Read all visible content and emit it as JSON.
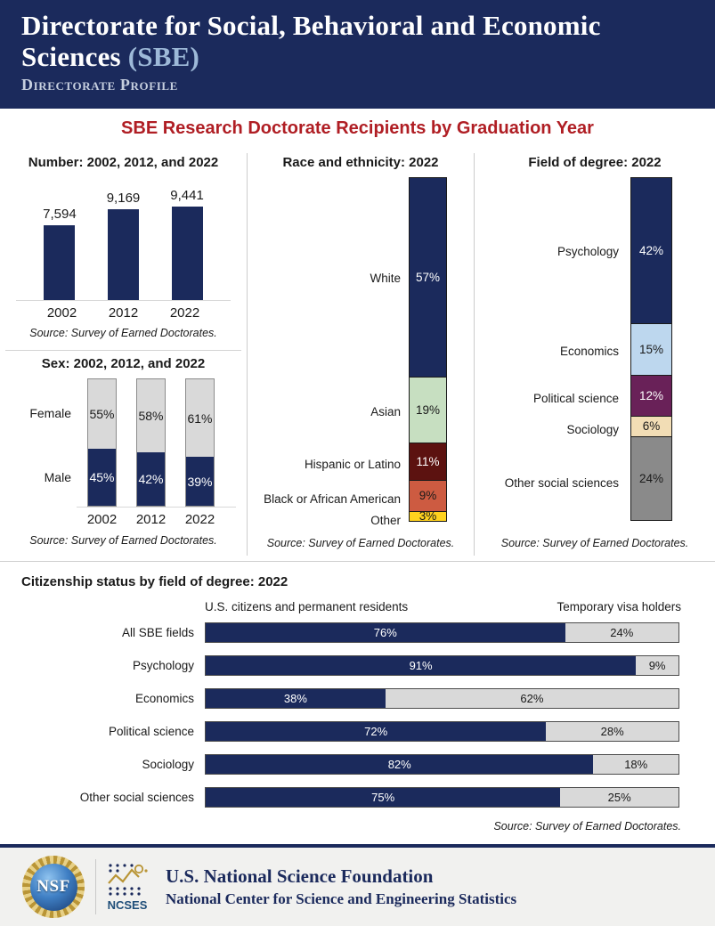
{
  "header": {
    "title_main": "Directorate for Social, Behavioral and Economic Sciences",
    "title_accent": "(SBE)",
    "subtitle": "Directorate Profile"
  },
  "main_title": "SBE Research Doctorate Recipients by Graduation Year",
  "colors": {
    "navy": "#1b2a5c",
    "title_red": "#b01e24",
    "light_gray_bar": "#d9d9d9",
    "gray_bar_border": "#8c8c8c",
    "asian_green": "#c7dfc1",
    "hispanic_maroon": "#5c1210",
    "black_terracotta": "#cd5b41",
    "other_yellow": "#ffd21e",
    "economics_lightblue": "#bdd7ee",
    "political_purple": "#692158",
    "sociology_cream": "#f2ddb5",
    "other_social_gray": "#8a8a8a",
    "footer_bg": "#f1f1ef"
  },
  "chart_data": [
    {
      "id": "number_by_year",
      "type": "bar",
      "title": "Number: 2002, 2012, and 2022",
      "categories": [
        "2002",
        "2012",
        "2022"
      ],
      "values": [
        7594,
        9169,
        9441
      ],
      "value_labels": [
        "7,594",
        "9,169",
        "9,441"
      ],
      "bar_color": "#1b2a5c",
      "source": "Source: Survey of Earned Doctorates."
    },
    {
      "id": "sex_by_year",
      "type": "stacked-bar",
      "title": "Sex: 2002, 2012, and 2022",
      "categories": [
        "2002",
        "2012",
        "2022"
      ],
      "series": [
        {
          "name": "Female",
          "values": [
            55,
            58,
            61
          ],
          "labels": [
            "55%",
            "58%",
            "61%"
          ],
          "color": "#d9d9d9",
          "text_color": "#1a1a1a"
        },
        {
          "name": "Male",
          "values": [
            45,
            42,
            39
          ],
          "labels": [
            "45%",
            "42%",
            "39%"
          ],
          "color": "#1b2a5c",
          "text_color": "#ffffff"
        }
      ],
      "source": "Source: Survey of Earned Doctorates."
    },
    {
      "id": "race_ethnicity_2022",
      "type": "stacked-bar",
      "title": "Race and ethnicity: 2022",
      "segments": [
        {
          "label": "White",
          "value": 57,
          "value_label": "57%",
          "color": "#1b2a5c",
          "text_color": "#ffffff"
        },
        {
          "label": "Asian",
          "value": 19,
          "value_label": "19%",
          "color": "#c7dfc1",
          "text_color": "#1a1a1a"
        },
        {
          "label": "Hispanic or Latino",
          "value": 11,
          "value_label": "11%",
          "color": "#5c1210",
          "text_color": "#ffffff"
        },
        {
          "label": "Black or African American",
          "value": 9,
          "value_label": "9%",
          "color": "#cd5b41",
          "text_color": "#1a1a1a"
        },
        {
          "label": "Other",
          "value": 3,
          "value_label": "3%",
          "color": "#ffd21e",
          "text_color": "#1a1a1a"
        }
      ],
      "source": "Source: Survey of Earned Doctorates."
    },
    {
      "id": "field_of_degree_2022",
      "type": "stacked-bar",
      "title": "Field of degree: 2022",
      "segments": [
        {
          "label": "Psychology",
          "value": 42,
          "value_label": "42%",
          "color": "#1b2a5c",
          "text_color": "#ffffff"
        },
        {
          "label": "Economics",
          "value": 15,
          "value_label": "15%",
          "color": "#bdd7ee",
          "text_color": "#1a1a1a"
        },
        {
          "label": "Political science",
          "value": 12,
          "value_label": "12%",
          "color": "#692158",
          "text_color": "#ffffff"
        },
        {
          "label": "Sociology",
          "value": 6,
          "value_label": "6%",
          "color": "#f2ddb5",
          "text_color": "#1a1a1a"
        },
        {
          "label": "Other social sciences",
          "value": 24,
          "value_label": "24%",
          "color": "#8a8a8a",
          "text_color": "#1a1a1a"
        }
      ],
      "source": "Source: Survey of Earned Doctorates."
    },
    {
      "id": "citizenship_by_field",
      "type": "stacked-bar-horizontal",
      "title": "Citizenship status by field of degree: 2022",
      "legend": [
        "U.S. citizens and permanent residents",
        "Temporary visa holders"
      ],
      "categories": [
        "All SBE fields",
        "Psychology",
        "Economics",
        "Political science",
        "Sociology",
        "Other social sciences"
      ],
      "series": [
        {
          "name": "U.S. citizens and permanent residents",
          "values": [
            76,
            91,
            38,
            72,
            82,
            75
          ],
          "color": "#1b2a5c",
          "text_color": "#ffffff"
        },
        {
          "name": "Temporary visa holders",
          "values": [
            24,
            9,
            62,
            28,
            18,
            25
          ],
          "color": "#d9d9d9",
          "text_color": "#1a1a1a"
        }
      ],
      "source": "Source: Survey of Earned Doctorates."
    }
  ],
  "footer": {
    "nsf_logo_text": "NSF",
    "ncses_logo_text": "NCSES",
    "org_line1": "U.S. National Science Foundation",
    "org_line2": "National Center for Science and Engineering Statistics"
  }
}
